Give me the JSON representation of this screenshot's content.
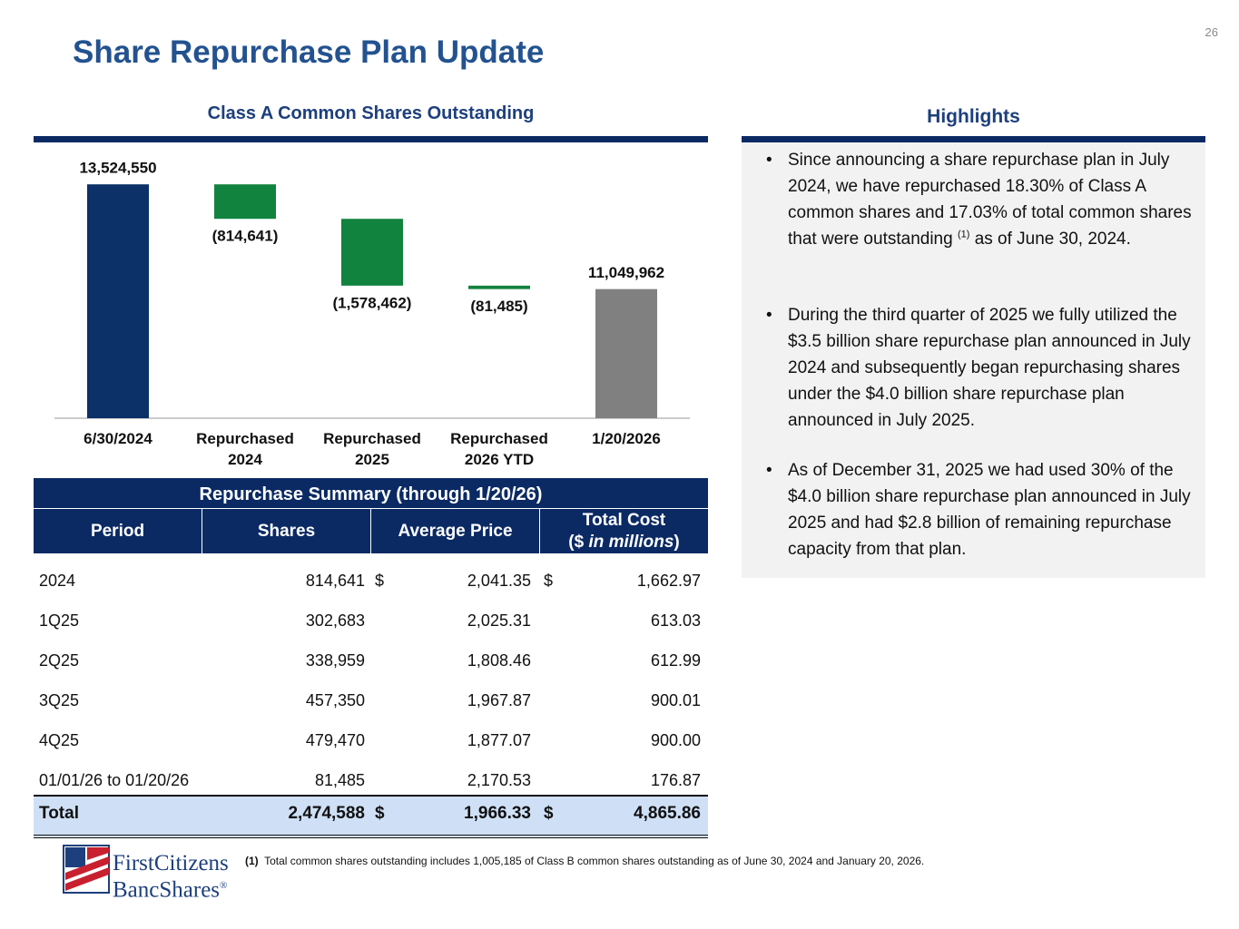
{
  "page_number": "26",
  "title": "Share Repurchase Plan Update",
  "chart_data": {
    "type": "waterfall",
    "title": "Class A Common Shares Outstanding",
    "categories": [
      "6/30/2024",
      "Repurchased 2024",
      "Repurchased 2025",
      "Repurchased 2026 YTD",
      "1/20/2026"
    ],
    "values": [
      13524550,
      -814641,
      -1578462,
      -81485,
      11049962
    ],
    "value_labels": [
      "13,524,550",
      "(814,641)",
      "(1,578,462)",
      "(81,485)",
      "11,049,962"
    ],
    "colors": [
      "#0b3168",
      "#12833f",
      "#12833f",
      "#12833f",
      "#808080"
    ],
    "ylim": [
      8000000,
      14000000
    ]
  },
  "table": {
    "title": "Repurchase Summary (through 1/20/26)",
    "headers": [
      "Period",
      "Shares",
      "Average Price",
      [
        "Total Cost",
        "($",
        "in millions",
        ")"
      ]
    ],
    "rows": [
      [
        "2024",
        "814,641",
        "$",
        "2,041.35",
        "$",
        "1,662.97"
      ],
      [
        "1Q25",
        "302,683",
        null,
        "2,025.31",
        null,
        "613.03"
      ],
      [
        "2Q25",
        "338,959",
        null,
        "1,808.46",
        null,
        "612.99"
      ],
      [
        "3Q25",
        "457,350",
        null,
        "1,967.87",
        null,
        "900.01"
      ],
      [
        "4Q25",
        "479,470",
        null,
        "1,877.07",
        null,
        "900.00"
      ],
      [
        "01/01/26 to 01/20/26",
        "81,485",
        null,
        "2,170.53",
        null,
        "176.87"
      ]
    ],
    "total": [
      "Total",
      "2,474,588",
      "$",
      "1,966.33",
      "$",
      "4,865.86"
    ]
  },
  "highlights": {
    "title": "Highlights",
    "bullets": [
      [
        "Since announcing a share repurchase plan in July 2024, we have repurchased 18.30% of Class A common shares and 17.03% of total common shares that were outstanding",
        "(1)",
        "as of June 30, 2024."
      ],
      [
        "During the third quarter of 2025 we fully utilized the $3.5 billion share repurchase plan announced in July 2024 and subsequently began repurchasing shares under the $4.0 billion share repurchase plan announced in July 2025."
      ],
      [
        "As of December 31, 2025 we had used 30% of the $4.0 billion share repurchase plan announced in July 2025 and had $2.8 billion of remaining repurchase capacity from that plan."
      ]
    ]
  },
  "footnote": {
    "marker": "(1)",
    "text": "Total common shares outstanding includes 1,005,185 of Class B common shares outstanding as of June 30, 2024 and January 20, 2026."
  },
  "logo": [
    "FirstCitizens",
    "BancShares",
    "®"
  ]
}
